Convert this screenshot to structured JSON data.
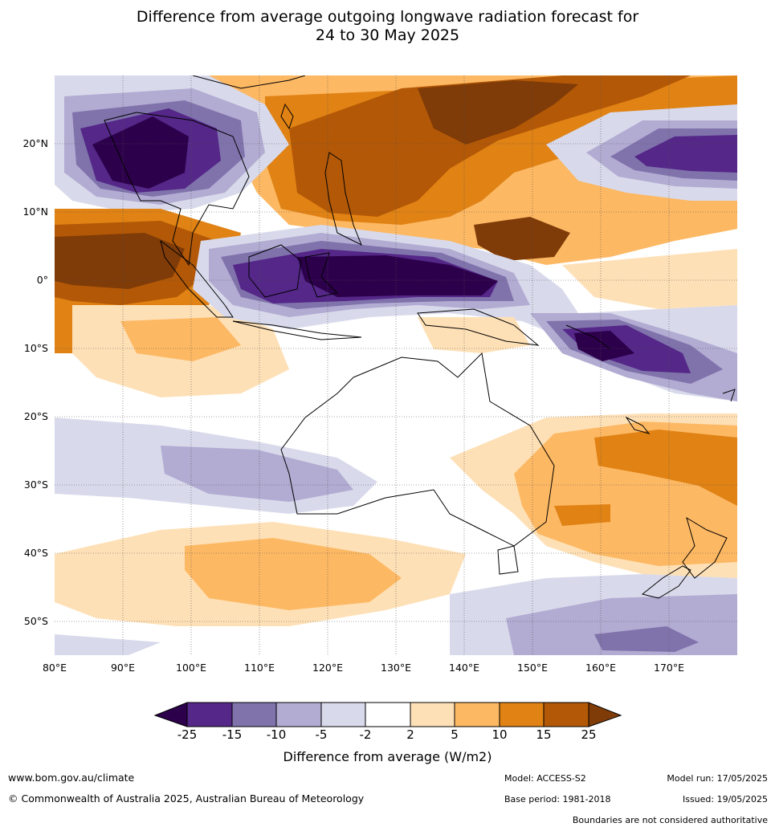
{
  "title": {
    "line1": "Difference from average outgoing longwave radiation forecast for",
    "line2": "24 to 30 May 2025"
  },
  "map": {
    "region": "Australasia / Maritime Continent / Western Pacific",
    "lon_range": [
      80,
      180
    ],
    "lat_range": [
      -55,
      30
    ],
    "lat_labels": [
      "20°N",
      "10°N",
      "0°",
      "10°S",
      "20°S",
      "30°S",
      "40°S",
      "50°S"
    ],
    "lon_labels": [
      "80°E",
      "90°E",
      "100°E",
      "110°E",
      "120°E",
      "130°E",
      "140°E",
      "150°E",
      "160°E",
      "170°E"
    ],
    "gridlines": true
  },
  "colorbar": {
    "label": "Difference from average (W/m2)",
    "ticks": [
      "-25",
      "-15",
      "-10",
      "-5",
      "-2",
      "2",
      "5",
      "10",
      "15",
      "25"
    ],
    "colors": {
      "below_-25": "#2d004b",
      "-25_-15": "#542788",
      "-15_-10": "#8073ac",
      "-10_-5": "#b2abd2",
      "-5_-2": "#d8daeb",
      "-2_2": "#ffffff",
      "2_5": "#fee0b6",
      "5_10": "#fdb863",
      "10_15": "#e08214",
      "15_25": "#b35806",
      "above_25": "#7f3b08"
    }
  },
  "footer": {
    "url": "www.bom.gov.au/climate",
    "copyright": "© Commonwealth of Australia 2025, Australian Bureau of Meteorology",
    "model": "Model: ACCESS-S2",
    "model_run": "Model run: 17/05/2025",
    "base_period": "Base period: 1981-2018",
    "issued": "Issued: 19/05/2025",
    "boundaries_note": "Boundaries are not considered authoritative"
  }
}
